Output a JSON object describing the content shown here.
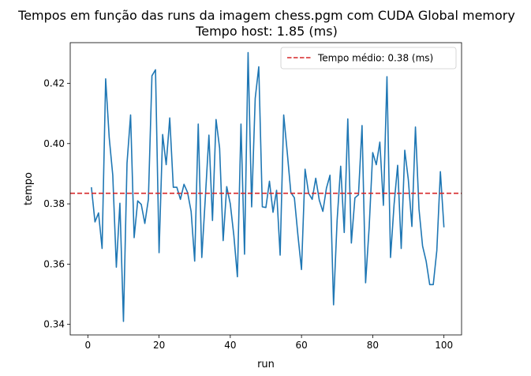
{
  "chart_data": {
    "type": "line",
    "title": "Tempos em função das runs da imagem chess.pgm com CUDA Global memory",
    "subtitle": "Tempo host: 1.85 (ms)",
    "xlabel": "run",
    "ylabel": "tempo",
    "xlim": [
      -4.95,
      104.95
    ],
    "ylim": [
      0.3365,
      0.4335
    ],
    "xticks": [
      0,
      20,
      40,
      60,
      80,
      100
    ],
    "yticks": [
      0.34,
      0.36,
      0.38,
      0.4,
      0.42
    ],
    "ytick_labels": [
      "0.34",
      "0.36",
      "0.38",
      "0.40",
      "0.42"
    ],
    "grid": false,
    "legend_position": "top-right",
    "colors": {
      "series": "#1f77b4",
      "mean_line": "#d62728"
    },
    "series": [
      {
        "x": [
          1,
          2,
          3,
          4,
          5,
          6,
          7,
          8,
          9,
          10,
          11,
          12,
          13,
          14,
          15,
          16,
          17,
          18,
          19,
          20,
          21,
          22,
          23,
          24,
          25,
          26,
          27,
          28,
          29,
          30,
          31,
          32,
          33,
          34,
          35,
          36,
          37,
          38,
          39,
          40,
          41,
          42,
          43,
          44,
          45,
          46,
          47,
          48,
          49,
          50,
          51,
          52,
          53,
          54,
          55,
          56,
          57,
          58,
          59,
          60,
          61,
          62,
          63,
          64,
          65,
          66,
          67,
          68,
          69,
          70,
          71,
          72,
          73,
          74,
          75,
          76,
          77,
          78,
          79,
          80,
          81,
          82,
          83,
          84,
          85,
          86,
          87,
          88,
          89,
          90,
          91,
          92,
          93,
          94,
          95,
          96,
          97,
          98,
          99,
          100
        ],
        "values": [
          0.3855,
          0.374,
          0.377,
          0.3652,
          0.4215,
          0.402,
          0.3895,
          0.359,
          0.3802,
          0.341,
          0.3935,
          0.4095,
          0.3688,
          0.381,
          0.3798,
          0.3735,
          0.3815,
          0.4225,
          0.4245,
          0.3638,
          0.403,
          0.393,
          0.4085,
          0.3855,
          0.3855,
          0.3815,
          0.3865,
          0.3838,
          0.3775,
          0.361,
          0.4065,
          0.3622,
          0.3822,
          0.4028,
          0.3745,
          0.408,
          0.3985,
          0.3678,
          0.3857,
          0.38,
          0.3695,
          0.3558,
          0.4065,
          0.3633,
          0.4302,
          0.379,
          0.415,
          0.4255,
          0.379,
          0.3788,
          0.3875,
          0.3772,
          0.3845,
          0.363,
          0.4095,
          0.397,
          0.3838,
          0.382,
          0.3695,
          0.3582,
          0.3915,
          0.3835,
          0.3815,
          0.3885,
          0.3812,
          0.3775,
          0.3852,
          0.3895,
          0.3465,
          0.3745,
          0.3925,
          0.3705,
          0.4082,
          0.367,
          0.382,
          0.383,
          0.406,
          0.3538,
          0.3722,
          0.397,
          0.393,
          0.4005,
          0.3795,
          0.4222,
          0.3622,
          0.3798,
          0.3928,
          0.3652,
          0.3978,
          0.388,
          0.3725,
          0.4055,
          0.3782,
          0.366,
          0.361,
          0.3532,
          0.3532,
          0.3645,
          0.3907,
          0.3722
        ]
      }
    ],
    "mean_line": {
      "value": 0.3835,
      "label": "Tempo médio: 0.38 (ms)"
    }
  }
}
